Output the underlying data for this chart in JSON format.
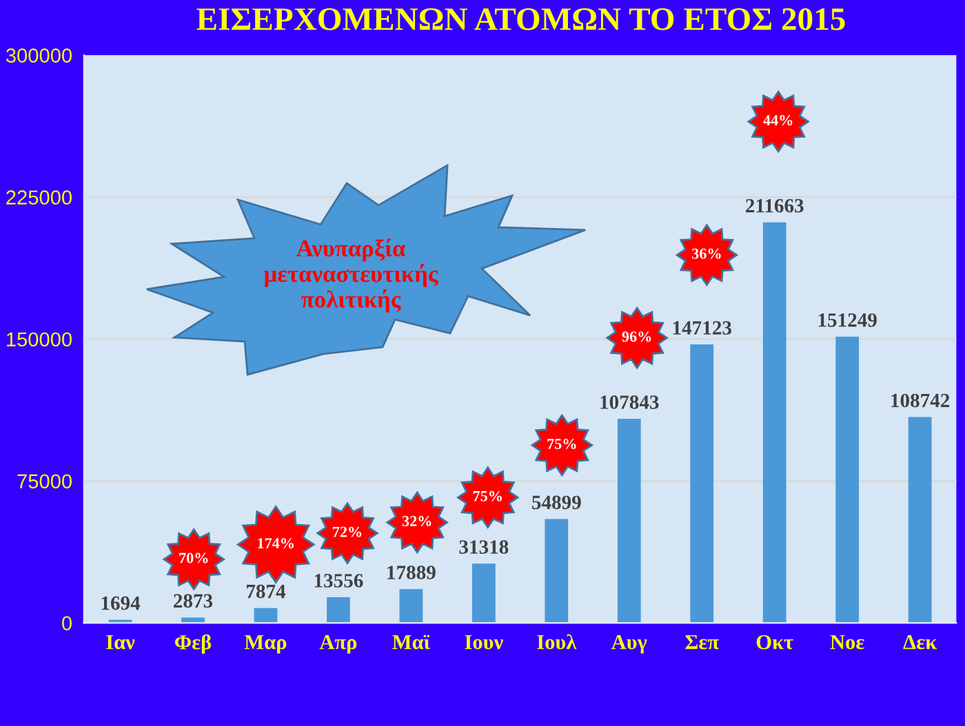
{
  "chart_data": {
    "type": "bar",
    "title": "ΕΙΣΕΡΧΟΜΕΝΩΝ ΑΤΟΜΩΝ ΤΟ ΕΤΟΣ 2015",
    "categories": [
      "Ιαν",
      "Φεβ",
      "Μαρ",
      "Απρ",
      "Μαϊ",
      "Ιουν",
      "Ιουλ",
      "Αυγ",
      "Σεπ",
      "Οκτ",
      "Νοε",
      "Δεκ"
    ],
    "values": [
      1694,
      2873,
      7874,
      13556,
      17889,
      31318,
      54899,
      107843,
      147123,
      211663,
      151249,
      108742
    ],
    "color": "#4a98d8",
    "ylim": [
      0,
      300000
    ],
    "yticks": [
      0,
      75000,
      150000,
      225000,
      300000
    ],
    "grid": "y",
    "data_labels": true,
    "annotations": [
      "Ανυπαρξία μεταναστευτικής πολιτικής",
      "70%",
      "174%",
      "72%",
      "32%",
      "75%",
      "75%",
      "96%",
      "36%",
      "44%"
    ]
  }
}
